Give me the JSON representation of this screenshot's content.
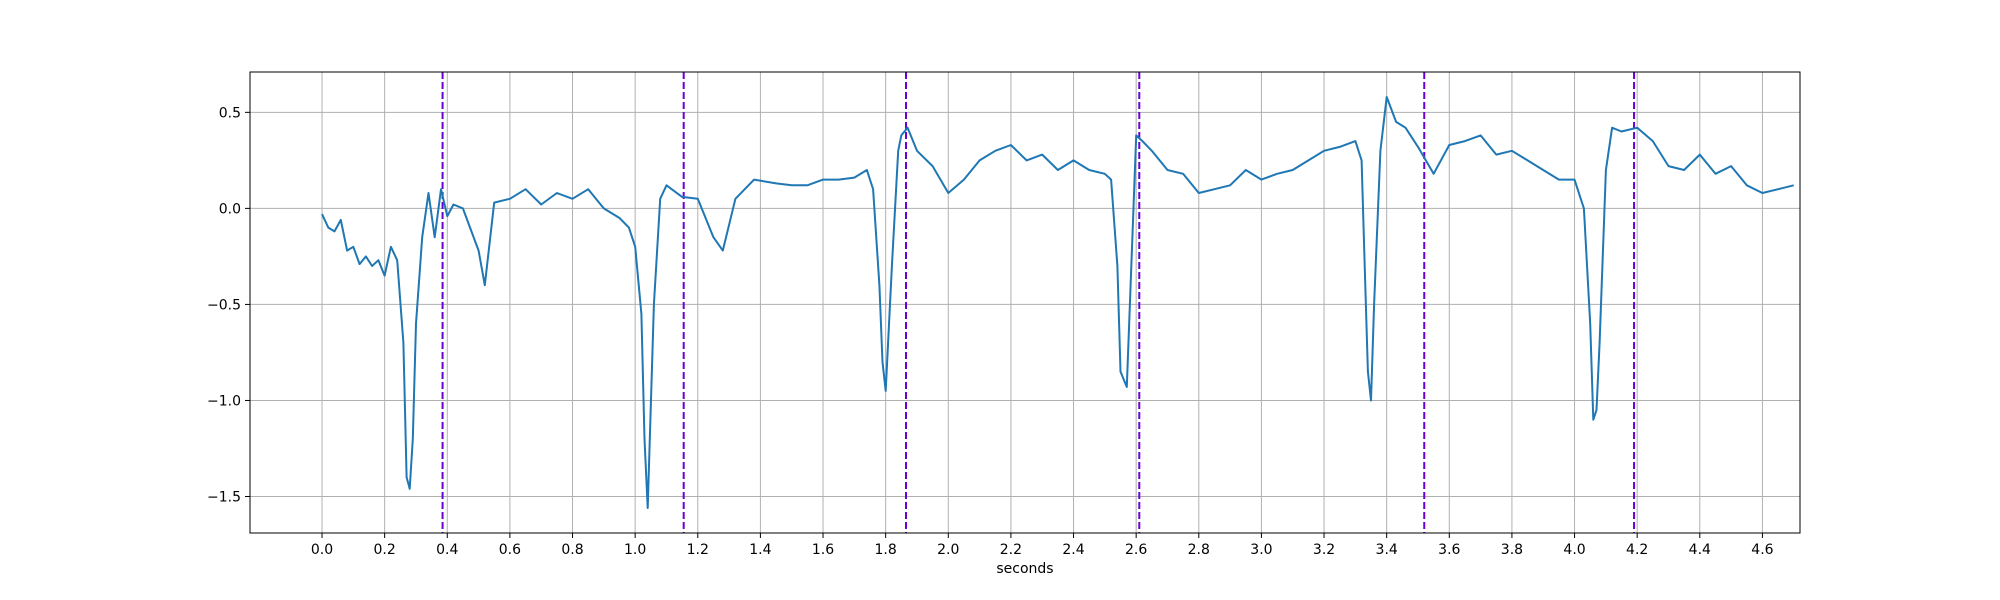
{
  "chart_data": {
    "type": "line",
    "title": "",
    "xlabel": "seconds",
    "ylabel": "",
    "xlim": [
      -0.23,
      4.72
    ],
    "ylim": [
      -1.69,
      0.71
    ],
    "grid": true,
    "x_ticks": [
      0.0,
      0.2,
      0.4,
      0.6,
      0.8,
      1.0,
      1.2,
      1.4,
      1.6,
      1.8,
      2.0,
      2.2,
      2.4,
      2.6,
      2.8,
      3.0,
      3.2,
      3.4,
      3.6,
      3.8,
      4.0,
      4.2,
      4.4,
      4.6
    ],
    "x_tick_labels": [
      "0.0",
      "0.2",
      "0.4",
      "0.6",
      "0.8",
      "1.0",
      "1.2",
      "1.4",
      "1.6",
      "1.8",
      "2.0",
      "2.2",
      "2.4",
      "2.6",
      "2.8",
      "3.0",
      "3.2",
      "3.4",
      "3.6",
      "3.8",
      "4.0",
      "4.2",
      "4.4",
      "4.6"
    ],
    "y_ticks": [
      -1.5,
      -1.0,
      -0.5,
      0.0,
      0.5
    ],
    "y_tick_labels": [
      "−1.5",
      "−1.0",
      "−0.5",
      "0.0",
      "0.5"
    ],
    "series": [
      {
        "color": "#1f77b4",
        "x": [
          0.0,
          0.02,
          0.04,
          0.06,
          0.08,
          0.1,
          0.12,
          0.14,
          0.16,
          0.18,
          0.2,
          0.22,
          0.24,
          0.26,
          0.27,
          0.28,
          0.29,
          0.3,
          0.32,
          0.34,
          0.36,
          0.38,
          0.4,
          0.42,
          0.45,
          0.5,
          0.52,
          0.55,
          0.6,
          0.65,
          0.7,
          0.75,
          0.8,
          0.85,
          0.9,
          0.95,
          0.98,
          1.0,
          1.02,
          1.03,
          1.04,
          1.06,
          1.08,
          1.1,
          1.15,
          1.2,
          1.25,
          1.28,
          1.32,
          1.38,
          1.45,
          1.5,
          1.55,
          1.6,
          1.65,
          1.7,
          1.74,
          1.76,
          1.78,
          1.79,
          1.8,
          1.82,
          1.84,
          1.85,
          1.87,
          1.9,
          1.95,
          2.0,
          2.05,
          2.1,
          2.15,
          2.2,
          2.25,
          2.3,
          2.35,
          2.4,
          2.45,
          2.5,
          2.52,
          2.54,
          2.55,
          2.57,
          2.6,
          2.62,
          2.65,
          2.7,
          2.75,
          2.8,
          2.85,
          2.9,
          2.95,
          3.0,
          3.05,
          3.1,
          3.15,
          3.2,
          3.25,
          3.3,
          3.32,
          3.33,
          3.34,
          3.35,
          3.36,
          3.38,
          3.4,
          3.43,
          3.46,
          3.5,
          3.55,
          3.6,
          3.65,
          3.7,
          3.75,
          3.8,
          3.85,
          3.9,
          3.95,
          4.0,
          4.03,
          4.05,
          4.06,
          4.07,
          4.08,
          4.1,
          4.12,
          4.15,
          4.2,
          4.25,
          4.3,
          4.35,
          4.4,
          4.45,
          4.5,
          4.55,
          4.6,
          4.65,
          4.7
        ],
        "y": [
          -0.03,
          -0.1,
          -0.12,
          -0.06,
          -0.22,
          -0.2,
          -0.29,
          -0.25,
          -0.3,
          -0.27,
          -0.35,
          -0.2,
          -0.27,
          -0.7,
          -1.4,
          -1.46,
          -1.2,
          -0.6,
          -0.15,
          0.08,
          -0.15,
          0.1,
          -0.04,
          0.02,
          0.0,
          -0.22,
          -0.4,
          0.03,
          0.05,
          0.1,
          0.02,
          0.08,
          0.05,
          0.1,
          0.0,
          -0.05,
          -0.1,
          -0.2,
          -0.55,
          -1.2,
          -1.56,
          -0.5,
          0.05,
          0.12,
          0.06,
          0.05,
          -0.15,
          -0.22,
          0.05,
          0.15,
          0.13,
          0.12,
          0.12,
          0.15,
          0.15,
          0.16,
          0.2,
          0.1,
          -0.4,
          -0.8,
          -0.95,
          -0.3,
          0.3,
          0.38,
          0.42,
          0.3,
          0.22,
          0.08,
          0.15,
          0.25,
          0.3,
          0.33,
          0.25,
          0.28,
          0.2,
          0.25,
          0.2,
          0.18,
          0.15,
          -0.3,
          -0.85,
          -0.93,
          0.38,
          0.35,
          0.3,
          0.2,
          0.18,
          0.08,
          0.1,
          0.12,
          0.2,
          0.15,
          0.18,
          0.2,
          0.25,
          0.3,
          0.32,
          0.35,
          0.25,
          -0.3,
          -0.85,
          -1.0,
          -0.5,
          0.3,
          0.58,
          0.45,
          0.42,
          0.32,
          0.18,
          0.33,
          0.35,
          0.38,
          0.28,
          0.3,
          0.25,
          0.2,
          0.15,
          0.15,
          0.0,
          -0.6,
          -1.1,
          -1.05,
          -0.7,
          0.2,
          0.42,
          0.4,
          0.42,
          0.35,
          0.22,
          0.2,
          0.28,
          0.18,
          0.22,
          0.12,
          0.08,
          0.1,
          0.12
        ]
      }
    ],
    "vlines": {
      "color": "#6a00d8",
      "style": "dashed",
      "x": [
        0.385,
        1.155,
        1.865,
        2.61,
        3.52,
        4.19
      ]
    }
  }
}
